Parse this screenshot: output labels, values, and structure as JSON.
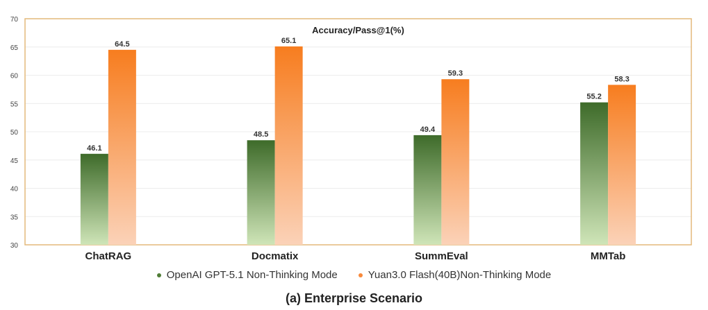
{
  "chart_data": {
    "type": "bar",
    "title": "Accuracy/Pass@1(%)",
    "caption": "(a) Enterprise Scenario",
    "categories": [
      "ChatRAG",
      "Docmatix",
      "SummEval",
      "MMTab"
    ],
    "series": [
      {
        "name": "OpenAI GPT-5.1 Non-Thinking Mode",
        "values": [
          46.1,
          48.5,
          49.4,
          55.2
        ],
        "color_top": "#3e6b2a",
        "color_bottom": "#cfe5b8"
      },
      {
        "name": "Yuan3.0 Flash(40B)Non-Thinking Mode",
        "values": [
          64.5,
          65.1,
          59.3,
          58.3
        ],
        "color_top": "#f77d1f",
        "color_bottom": "#fbd2b8"
      }
    ],
    "ylim": [
      30,
      70
    ],
    "yticks": [
      30,
      35,
      40,
      45,
      50,
      55,
      60,
      65,
      70
    ],
    "grid": true,
    "legend_position": "bottom",
    "frame_color": "#e3b97a"
  }
}
